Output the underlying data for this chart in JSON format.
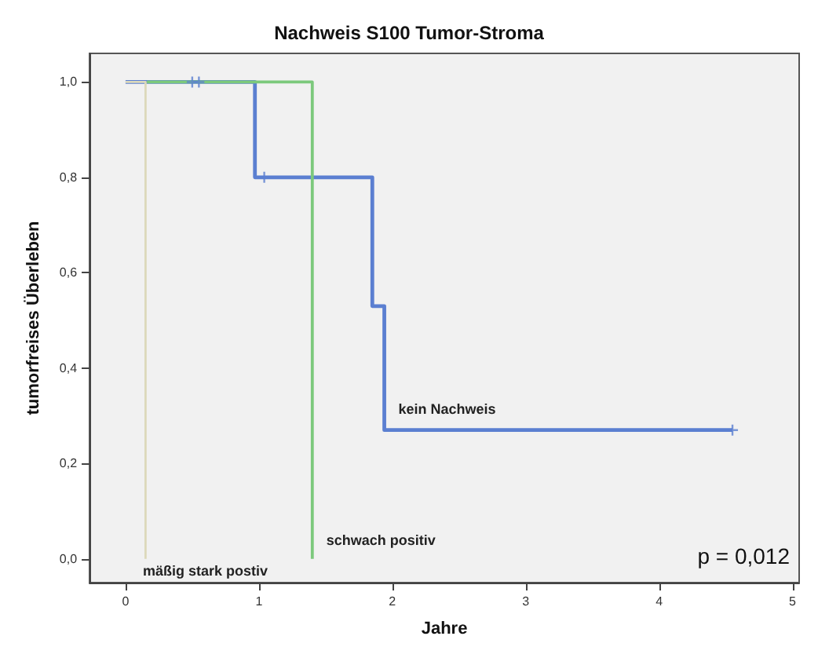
{
  "chart_data": {
    "type": "step",
    "title": "Nachweis S100 Tumor-Stroma",
    "xlabel": "Jahre",
    "ylabel": "tumorfreises Überleben",
    "series": [
      {
        "name": "kein Nachweis",
        "color": "#5b7fd1",
        "x": [
          0,
          0.97,
          1.85,
          1.94,
          4.55
        ],
        "values": [
          1,
          0.8,
          0.53,
          0.27,
          0.27
        ]
      },
      {
        "name": "schwach positiv",
        "color": "#7cc97c",
        "x": [
          0.16,
          1.4
        ],
        "values": [
          1,
          0
        ]
      },
      {
        "name": "mäßig stark postiv",
        "color": "#dcd9bb",
        "x": [
          0,
          0.15
        ],
        "values": [
          1,
          0
        ]
      },
      {
        "type": "scatter",
        "color": "#5b7fd1",
        "marker": "cross",
        "x": [
          0.5,
          0.55,
          1.04,
          4.55
        ],
        "values": [
          1,
          1,
          0.8,
          0.27
        ]
      }
    ],
    "annotations": [
      "p = 0,012"
    ],
    "xlim": [
      -0.27,
      5.05
    ],
    "xticks": [
      0,
      1,
      2,
      3,
      4,
      5
    ],
    "ylim": [
      -0.05,
      1.06
    ],
    "yticks": [
      {
        "value": 0,
        "label": "0,0"
      },
      {
        "value": 0.2,
        "label": "0,2"
      },
      {
        "value": 0.4,
        "label": "0,4"
      },
      {
        "value": 0.6,
        "label": "0,6"
      },
      {
        "value": 0.8,
        "label": "0,8"
      },
      {
        "value": 1,
        "label": "1,0"
      }
    ],
    "grid": false,
    "legend": false
  }
}
